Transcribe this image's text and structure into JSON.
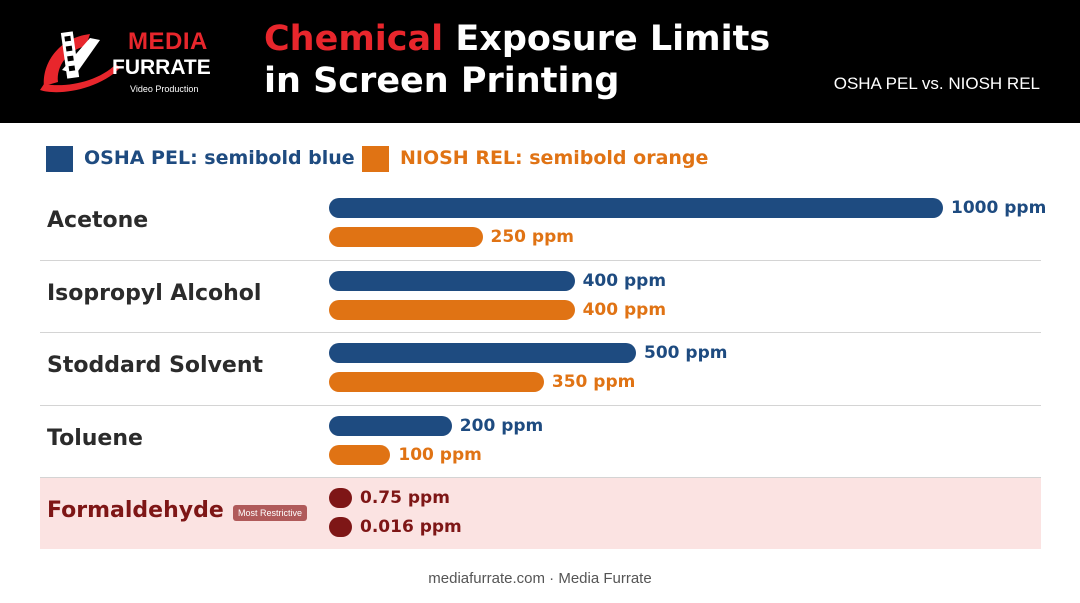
{
  "header": {
    "logo": {
      "line1": "MEDIA",
      "line2": "FURRATE",
      "line3": "Video Production"
    },
    "title_accent": "Chemical",
    "title_rest_line1": "Exposure Limits",
    "title_line2": "in Screen Printing",
    "subtitle": "OSHA PEL vs. NIOSH REL"
  },
  "legend": {
    "osha": "OSHA PEL: semibold blue",
    "niosh": "NIOSH REL: semibold orange"
  },
  "badge": "Most Restrictive",
  "footer": "mediafurrate.com · Media Furrate",
  "colors": {
    "osha": "#1e4b80",
    "niosh": "#e07314",
    "restrictive": "#7e1616",
    "brand_red": "#e8262c"
  },
  "chart_data": {
    "type": "bar",
    "orientation": "horizontal",
    "categories": [
      "Acetone",
      "Isopropyl Alcohol",
      "Stoddard Solvent",
      "Toluene",
      "Formaldehyde"
    ],
    "unit": "ppm",
    "series": [
      {
        "name": "OSHA PEL",
        "values": [
          1000,
          400,
          500,
          200,
          0.75
        ],
        "labels": [
          "1000 ppm",
          "400 ppm",
          "500 ppm",
          "200 ppm",
          "0.75 ppm"
        ]
      },
      {
        "name": "NIOSH REL",
        "values": [
          250,
          400,
          350,
          100,
          0.016
        ],
        "labels": [
          "250 ppm",
          "400 ppm",
          "350 ppm",
          "100 ppm",
          "0.016 ppm"
        ]
      }
    ],
    "highlight_category": "Formaldehyde",
    "xlim": [
      0,
      1000
    ],
    "grid": false,
    "legend_position": "top-left"
  }
}
